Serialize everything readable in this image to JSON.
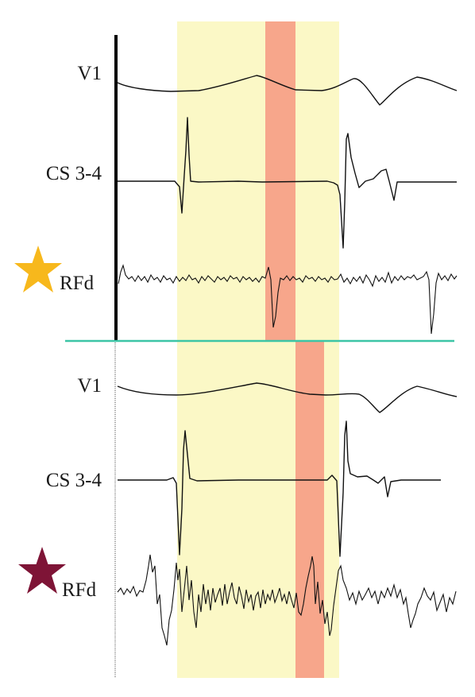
{
  "colors": {
    "window_highlight": "#fbf8c6",
    "activation_highlight": "#f7a68b",
    "divider": "#3cc5a6",
    "trace": "#111111",
    "star_top": "#f7b81c",
    "star_bottom": "#7e1436"
  },
  "panels": [
    {
      "marker_icon": "star-icon",
      "marker_color": "#f7b81c",
      "channels": [
        {
          "label": "V1"
        },
        {
          "label": "CS 3-4"
        },
        {
          "label": "RFd"
        }
      ]
    },
    {
      "marker_icon": "star-icon",
      "marker_color": "#7e1436",
      "channels": [
        {
          "label": "V1"
        },
        {
          "label": "CS 3-4"
        },
        {
          "label": "RFd"
        }
      ]
    }
  ]
}
